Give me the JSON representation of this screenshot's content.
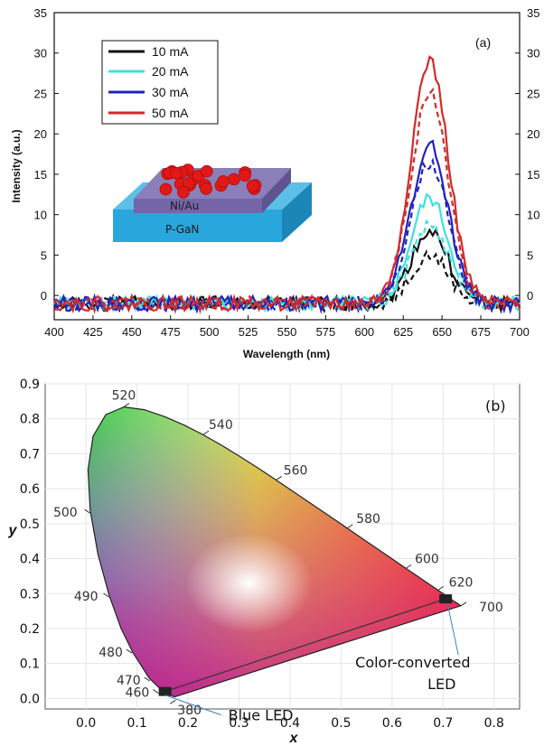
{
  "chart_data": [
    {
      "type": "line",
      "panel_label": "(a)",
      "xlabel": "Wavelength (nm)",
      "ylabel": "Intensity (a.u.)",
      "xlim": [
        400,
        700
      ],
      "ylim": [
        -3,
        35
      ],
      "x_ticks": [
        400,
        425,
        450,
        475,
        500,
        525,
        550,
        575,
        600,
        625,
        650,
        675,
        700
      ],
      "y_ticks": [
        0,
        5,
        10,
        15,
        20,
        25,
        30,
        35
      ],
      "y_ticks_right": [
        0,
        5,
        10,
        15,
        20,
        25,
        30,
        35
      ],
      "legend_position": "top-left",
      "inset_labels": [
        "Ni/Au",
        "P-GaN"
      ],
      "series": [
        {
          "name": "10 mA",
          "color": "#111111",
          "peak_solid": 9,
          "peak_dashed": 6,
          "peak_x": 642
        },
        {
          "name": "20 mA",
          "color": "#3fe0e0",
          "peak_solid": 13,
          "peak_dashed": 9.5,
          "peak_x": 642
        },
        {
          "name": "30 mA",
          "color": "#2222bb",
          "peak_solid": 19.5,
          "peak_dashed": 17.5,
          "peak_x": 642
        },
        {
          "name": "50 mA",
          "color": "#d42a2a",
          "peak_solid": 30,
          "peak_dashed": 26,
          "peak_x": 642
        }
      ]
    },
    {
      "type": "scatter",
      "panel_label": "(b)",
      "xlabel": "x",
      "ylabel": "y",
      "xlim": [
        -0.08,
        0.85
      ],
      "ylim": [
        -0.03,
        0.9
      ],
      "x_ticks": [
        "0.0",
        "0.1",
        "0.2",
        "0.3",
        "0.4",
        "0.5",
        "0.6",
        "0.7",
        "0.8"
      ],
      "y_ticks": [
        "0.0",
        "0.1",
        "0.2",
        "0.3",
        "0.4",
        "0.5",
        "0.6",
        "0.7",
        "0.8",
        "0.9"
      ],
      "wavelength_labels": [
        "380",
        "460",
        "470",
        "480",
        "490",
        "500",
        "520",
        "540",
        "560",
        "580",
        "600",
        "620",
        "700"
      ],
      "points": [
        {
          "label": "Blue LED",
          "x": 0.155,
          "y": 0.02
        },
        {
          "label": "Color-converted LED",
          "label_line2": "LED",
          "x": 0.705,
          "y": 0.285
        }
      ]
    }
  ]
}
